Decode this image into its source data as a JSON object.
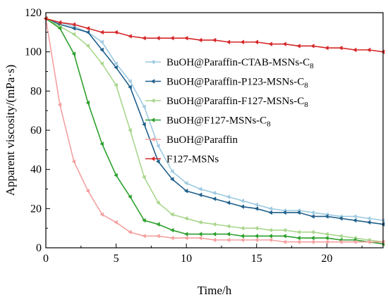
{
  "chart_data": {
    "type": "line",
    "title": "",
    "xlabel": "Time/h",
    "ylabel": "Apparent viscosity/(mPa·s)",
    "xlim": [
      0,
      24
    ],
    "ylim": [
      0,
      120
    ],
    "xticks": [
      0,
      5,
      10,
      15,
      20
    ],
    "yticks": [
      0,
      20,
      40,
      60,
      80,
      100,
      120
    ],
    "grid": false,
    "legend_position": "center-right",
    "series": [
      {
        "name": "BuOH@Paraffin-CTAB-MSNs-C",
        "name_sub": "8",
        "color": "#9ecae1",
        "x": [
          0,
          1,
          2,
          3,
          4,
          5,
          6,
          7,
          8,
          9,
          10,
          11,
          12,
          13,
          14,
          15,
          16,
          17,
          18,
          19,
          20,
          21,
          22,
          23,
          24
        ],
        "y": [
          117,
          115,
          113,
          110,
          105,
          94,
          85,
          72,
          52,
          39,
          33,
          30,
          28,
          26,
          24,
          22,
          20,
          19,
          19,
          18,
          17,
          16,
          16,
          15,
          14
        ]
      },
      {
        "name": "BuOH@Paraffin-P123-MSNs-C",
        "name_sub": "8",
        "color": "#1f5f8b",
        "x": [
          0,
          1,
          2,
          3,
          4,
          5,
          6,
          7,
          8,
          9,
          10,
          11,
          12,
          13,
          14,
          15,
          16,
          17,
          18,
          19,
          20,
          21,
          22,
          23,
          24
        ],
        "y": [
          117,
          114,
          112,
          110,
          101,
          92,
          82,
          63,
          44,
          35,
          29,
          27,
          25,
          23,
          21,
          20,
          18,
          18,
          18,
          16,
          16,
          15,
          14,
          13,
          12
        ]
      },
      {
        "name": "BuOH@Paraffin-F127-MSNs-C",
        "name_sub": "8",
        "color": "#a8d68c",
        "x": [
          0,
          1,
          2,
          3,
          4,
          5,
          6,
          7,
          8,
          9,
          10,
          11,
          12,
          13,
          14,
          15,
          16,
          17,
          18,
          19,
          20,
          21,
          22,
          23,
          24
        ],
        "y": [
          117,
          113,
          109,
          103,
          94,
          83,
          60,
          36,
          23,
          17,
          15,
          13,
          12,
          11,
          10,
          10,
          9,
          9,
          8,
          8,
          7,
          6,
          5,
          4,
          3
        ]
      },
      {
        "name": "BuOH@F127-MSNs-C",
        "name_sub": "8",
        "color": "#2ca02c",
        "x": [
          0,
          1,
          2,
          3,
          4,
          5,
          6,
          7,
          8,
          9,
          10,
          11,
          12,
          13,
          14,
          15,
          16,
          17,
          18,
          19,
          20,
          21,
          22,
          23,
          24
        ],
        "y": [
          117,
          112,
          99,
          74,
          53,
          37,
          26,
          14,
          12,
          9,
          7,
          7,
          7,
          7,
          6,
          6,
          6,
          6,
          5,
          5,
          5,
          4,
          4,
          3,
          2
        ]
      },
      {
        "name": "BuOH@Paraffin",
        "name_sub": "",
        "color": "#f4a0a0",
        "x": [
          0,
          1,
          2,
          3,
          4,
          5,
          6,
          7,
          8,
          9,
          10,
          11,
          12,
          13,
          14,
          15,
          16,
          17,
          18,
          19,
          20,
          21,
          22,
          23,
          24
        ],
        "y": [
          117,
          73,
          44,
          29,
          17,
          13,
          8,
          6,
          6,
          5,
          5,
          5,
          4,
          4,
          4,
          4,
          4,
          3,
          3,
          3,
          3,
          3,
          3,
          3,
          3
        ]
      },
      {
        "name": "F127-MSNs",
        "name_sub": "",
        "color": "#d62728",
        "x": [
          0,
          1,
          2,
          3,
          4,
          5,
          6,
          7,
          8,
          9,
          10,
          11,
          12,
          13,
          14,
          15,
          16,
          17,
          18,
          19,
          20,
          21,
          22,
          23,
          24
        ],
        "y": [
          117,
          115,
          114,
          112,
          110,
          110,
          108,
          107,
          107,
          107,
          107,
          106,
          106,
          105,
          105,
          105,
          104,
          104,
          103,
          103,
          102,
          102,
          101,
          101,
          100
        ]
      }
    ]
  }
}
